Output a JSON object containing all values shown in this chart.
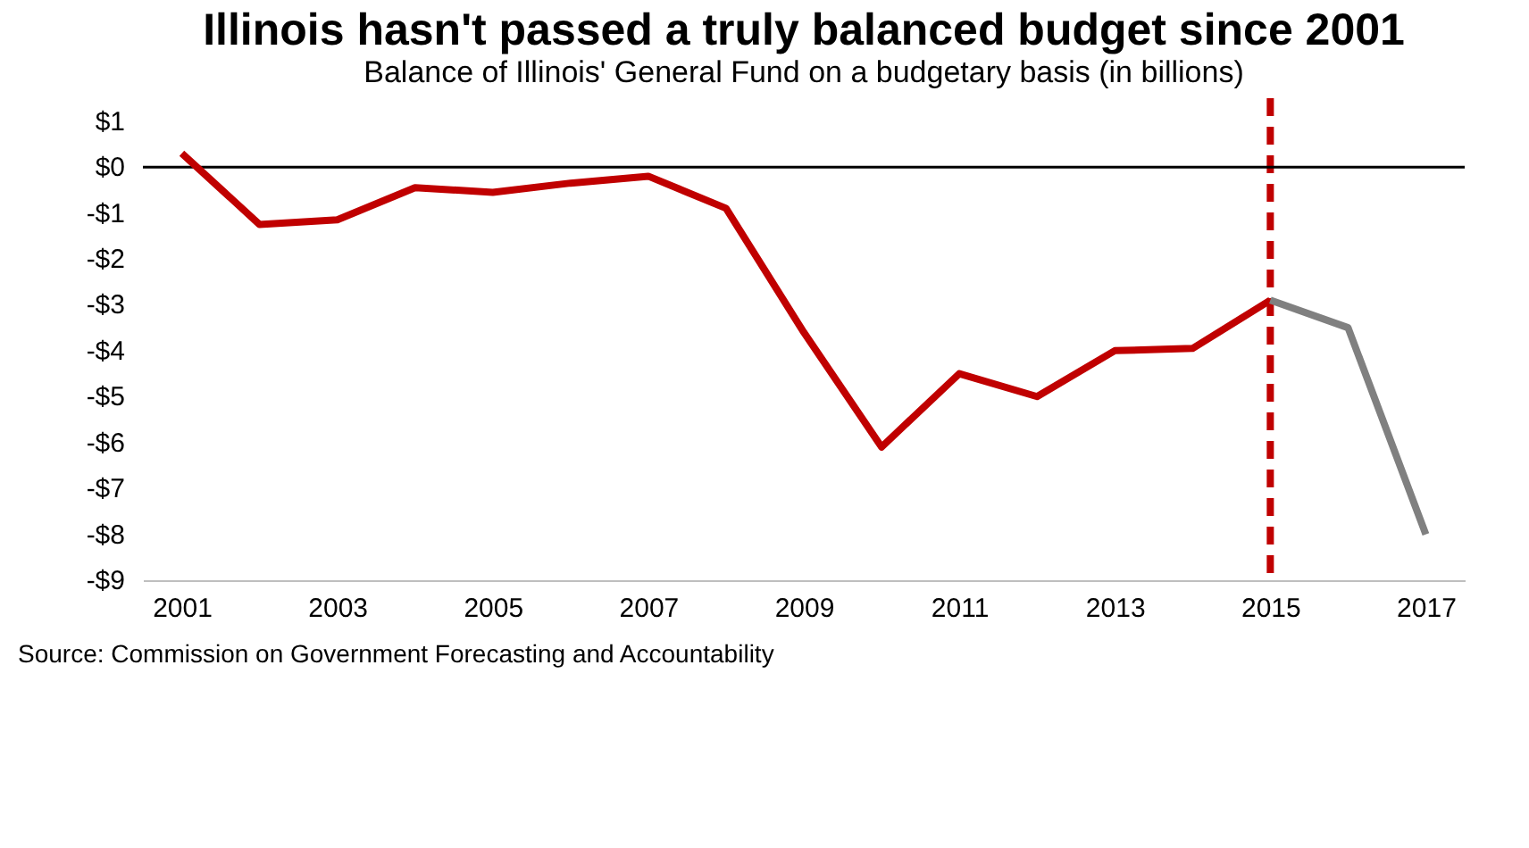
{
  "chart_data": {
    "type": "line",
    "title": "Illinois hasn't passed a truly balanced budget since 2001",
    "subtitle": "Balance of Illinois' General Fund on a budgetary basis (in billions)",
    "x": [
      2001,
      2002,
      2003,
      2004,
      2005,
      2006,
      2007,
      2008,
      2009,
      2010,
      2011,
      2012,
      2013,
      2014,
      2015
    ],
    "series": [
      {
        "color": "#c00000",
        "values": [
          0.3,
          -1.25,
          -1.15,
          -0.45,
          -0.55,
          -0.35,
          -0.2,
          -0.9,
          -3.6,
          -6.1,
          -4.5,
          -5.0,
          -4.0,
          -3.95,
          -2.9
        ]
      },
      {
        "color": "#808080",
        "x": [
          2015,
          2016,
          2017
        ],
        "values": [
          -2.9,
          -3.5,
          -8.0
        ]
      }
    ],
    "xlim": [
      2000.5,
      2017.5
    ],
    "xticks": [
      2001,
      2003,
      2005,
      2007,
      2009,
      2011,
      2013,
      2015,
      2017
    ],
    "ylim": [
      -9,
      1.5
    ],
    "yticks": [
      {
        "value": 1,
        "label": "$1"
      },
      {
        "value": 0,
        "label": "$0"
      },
      {
        "value": -1,
        "label": "-$1"
      },
      {
        "value": -2,
        "label": "-$2"
      },
      {
        "value": -3,
        "label": "-$3"
      },
      {
        "value": -4,
        "label": "-$4"
      },
      {
        "value": -5,
        "label": "-$5"
      },
      {
        "value": -6,
        "label": "-$6"
      },
      {
        "value": -7,
        "label": "-$7"
      },
      {
        "value": -8,
        "label": "-$8"
      },
      {
        "value": -9,
        "label": "-$9"
      }
    ],
    "ref_lines": [
      {
        "axis": "x",
        "value": 2015,
        "color": "#c00000",
        "line_style": "dashed"
      },
      {
        "axis": "y",
        "value": 0,
        "color": "#000000",
        "line_style": "solid"
      }
    ],
    "grid": false,
    "marker": "none",
    "line_style": "solid",
    "annotations": [
      "Source: Commission on Government Forecasting and Accountability"
    ]
  }
}
